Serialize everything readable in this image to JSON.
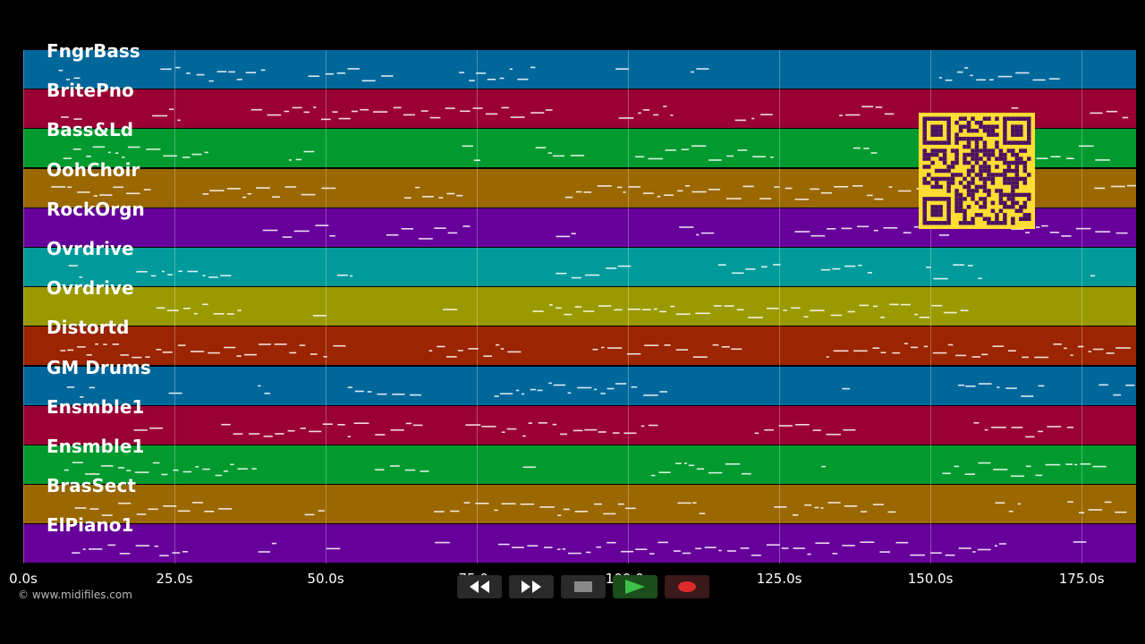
{
  "tracks": [
    {
      "name": "FngrBass",
      "color": "#00679b"
    },
    {
      "name": "BritePno",
      "color": "#9a0034"
    },
    {
      "name": "Bass&Ld",
      "color": "#009a2e"
    },
    {
      "name": "OohChoir",
      "color": "#9a6700"
    },
    {
      "name": "RockOrgn",
      "color": "#67009a"
    },
    {
      "name": "Ovrdrive",
      "color": "#009a9a"
    },
    {
      "name": "Ovrdrive",
      "color": "#9a9a00"
    },
    {
      "name": "Distortd",
      "color": "#9a2500"
    },
    {
      "name": "GM Drums",
      "color": "#00679b"
    },
    {
      "name": "Ensmble1",
      "color": "#9a0034"
    },
    {
      "name": "Ensmble1",
      "color": "#009a2e"
    },
    {
      "name": "BrasSect",
      "color": "#9a6700"
    },
    {
      "name": "ElPiano1",
      "color": "#67009a"
    }
  ],
  "timeline": {
    "max_seconds": 184,
    "ticks": [
      "0.0s",
      "25.0s",
      "50.0s",
      "75.0s",
      "100.0s",
      "125.0s",
      "150.0s",
      "175.0s"
    ],
    "tick_values": [
      0,
      25,
      50,
      75,
      100,
      125,
      150,
      175
    ]
  },
  "copyright": "© www.midifiles.com",
  "controls": [
    {
      "name": "rewind-button",
      "icon": "rewind-icon",
      "color": "#ffffff"
    },
    {
      "name": "fast-forward-button",
      "icon": "fast-forward-icon",
      "color": "#ffffff"
    },
    {
      "name": "stop-button",
      "icon": "stop-icon",
      "color": "#888888"
    },
    {
      "name": "play-button",
      "icon": "play-icon",
      "color": "#1fa02a"
    },
    {
      "name": "record-button",
      "icon": "record-icon",
      "color": "#cc2222"
    }
  ],
  "qr": {
    "fg": "#4a1160",
    "bg": "#ffdd33"
  }
}
